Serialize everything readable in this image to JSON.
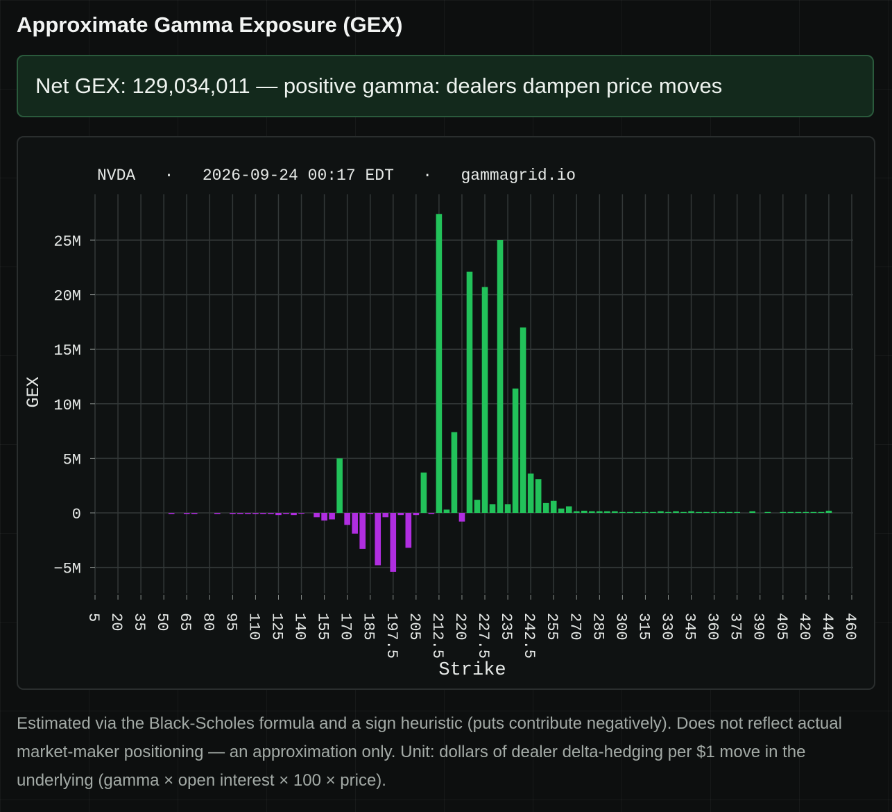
{
  "page": {
    "title": "Approximate Gamma Exposure (GEX)",
    "net_gex_text": "Net GEX: 129,034,011 — positive gamma: dealers dampen price moves",
    "footnote": "Estimated via the Black-Scholes formula and a sign heuristic (puts contribute negatively). Does not reflect actual market-maker positioning — an approximation only. Unit: dollars of dealer delta-hedging per $1 move in the underlying (gamma × open interest × 100 × price)."
  },
  "colors": {
    "positive": "#22c25a",
    "negative": "#b02ee0",
    "grid": "#333838",
    "text": "#e6e9e7"
  },
  "chart_data": {
    "type": "bar",
    "subtitle": "NVDA   ·   2026-09-24 00:17 EDT   ·   gammagrid.io",
    "xlabel": "Strike",
    "ylabel": "GEX",
    "ylim": [
      -7700000,
      29000000
    ],
    "yticks": [
      -5000000,
      0,
      5000000,
      10000000,
      15000000,
      20000000,
      25000000
    ],
    "ytick_labels": [
      "−5M",
      "0",
      "5M",
      "10M",
      "15M",
      "20M",
      "25M"
    ],
    "xtick_labels": [
      "5",
      "20",
      "35",
      "50",
      "65",
      "80",
      "95",
      "110",
      "125",
      "140",
      "155",
      "170",
      "185",
      "197.5",
      "205",
      "212.5",
      "220",
      "227.5",
      "235",
      "242.5",
      "255",
      "270",
      "285",
      "300",
      "315",
      "330",
      "345",
      "360",
      "375",
      "390",
      "405",
      "420",
      "440",
      "460"
    ],
    "grid": true,
    "legend": "none",
    "values": [
      0,
      0,
      0,
      0,
      0,
      0,
      0,
      0,
      0,
      0,
      -100000,
      0,
      -100000,
      -100000,
      0,
      0,
      -100000,
      0,
      -100000,
      -100000,
      -100000,
      -100000,
      -100000,
      -100000,
      -200000,
      -100000,
      -200000,
      -50000,
      0,
      -400000,
      -700000,
      -600000,
      5000000,
      -1100000,
      -1900000,
      -3300000,
      -100000,
      -4800000,
      -400000,
      -5400000,
      -200000,
      -3200000,
      -200000,
      3700000,
      -100000,
      27400000,
      300000,
      7400000,
      -800000,
      22100000,
      1200000,
      20700000,
      800000,
      25000000,
      800000,
      11400000,
      17000000,
      3600000,
      3100000,
      900000,
      1100000,
      400000,
      600000,
      150000,
      200000,
      150000,
      150000,
      150000,
      150000,
      80000,
      80000,
      80000,
      80000,
      80000,
      150000,
      80000,
      150000,
      80000,
      150000,
      80000,
      80000,
      80000,
      80000,
      80000,
      80000,
      0,
      150000,
      0,
      80000,
      0,
      80000,
      80000,
      80000,
      80000,
      80000,
      80000,
      200000
    ]
  }
}
